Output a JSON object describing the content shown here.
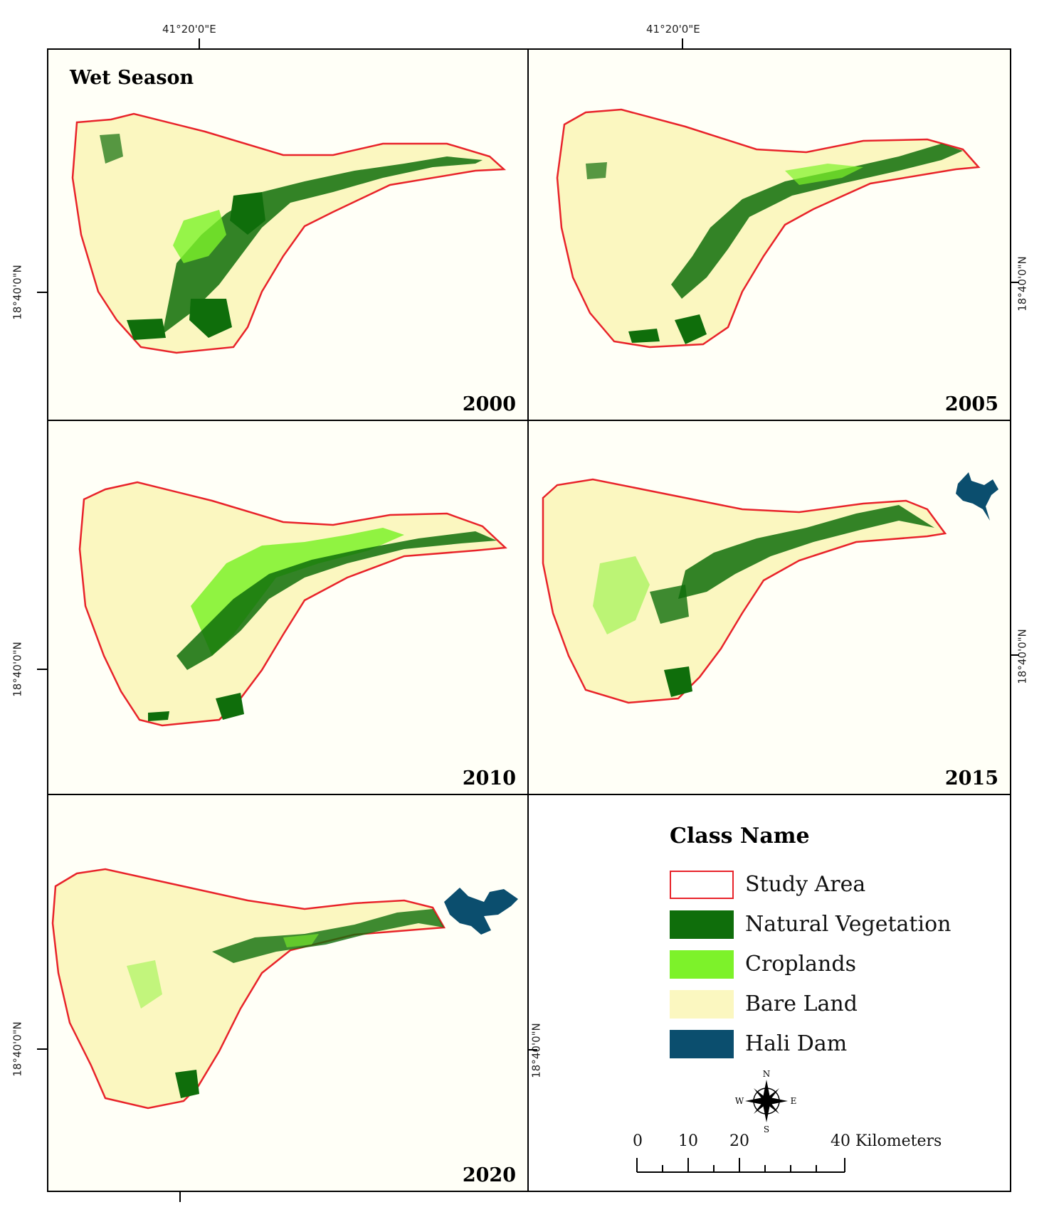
{
  "season_title": "Wet Season",
  "coordinates": {
    "lon_label": "41°20'0\"E",
    "lat_label": "18°40'0\"N"
  },
  "panels": [
    {
      "year": "2000"
    },
    {
      "year": "2005"
    },
    {
      "year": "2010"
    },
    {
      "year": "2015"
    },
    {
      "year": "2020"
    }
  ],
  "legend": {
    "title": "Class Name",
    "items": [
      {
        "label": "Study Area",
        "color": "#e8232a",
        "style": "outline"
      },
      {
        "label": "Natural Vegetation",
        "color": "#0f6e0b"
      },
      {
        "label": "Croplands",
        "color": "#7df22a"
      },
      {
        "label": "Bare Land",
        "color": "#fbf7c0"
      },
      {
        "label": "Hali Dam",
        "color": "#0b4e6e"
      }
    ]
  },
  "compass": {
    "n": "N",
    "s": "S",
    "e": "E",
    "w": "W"
  },
  "scale_bar": {
    "ticks": [
      "0",
      "10",
      "20",
      "40 Kilometers"
    ]
  },
  "colors": {
    "boundary": "#e8232a",
    "bare_land": "#fbf7c0",
    "natural_vegetation": "#0f6e0b",
    "croplands": "#7df22a",
    "dam": "#0b4e6e"
  }
}
